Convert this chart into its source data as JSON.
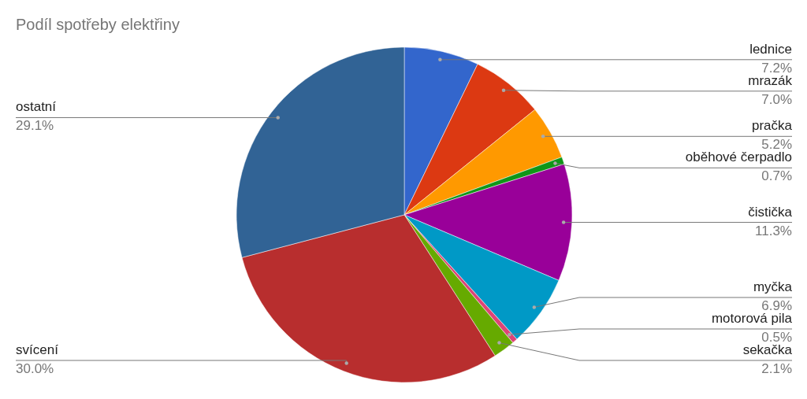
{
  "chart_data": {
    "type": "pie",
    "title": "Podíl spotřeby elektřiny",
    "categories": [
      "lednice",
      "mrazák",
      "pračka",
      "oběhové čerpadlo",
      "čistička",
      "myčka",
      "motorová pila",
      "sekačka",
      "svícení",
      "ostatní"
    ],
    "values": [
      7.2,
      7.0,
      5.2,
      0.7,
      11.3,
      6.9,
      0.5,
      2.1,
      30.0,
      29.1
    ],
    "value_labels": [
      "7.2%",
      "7.0%",
      "5.2%",
      "0.7%",
      "11.3%",
      "6.9%",
      "0.5%",
      "2.1%",
      "30.0%",
      "29.1%"
    ],
    "colors": [
      "#3366cc",
      "#dc3912",
      "#ff9900",
      "#109618",
      "#990099",
      "#0099c6",
      "#dd4477",
      "#66aa00",
      "#b82e2e",
      "#316395"
    ]
  }
}
